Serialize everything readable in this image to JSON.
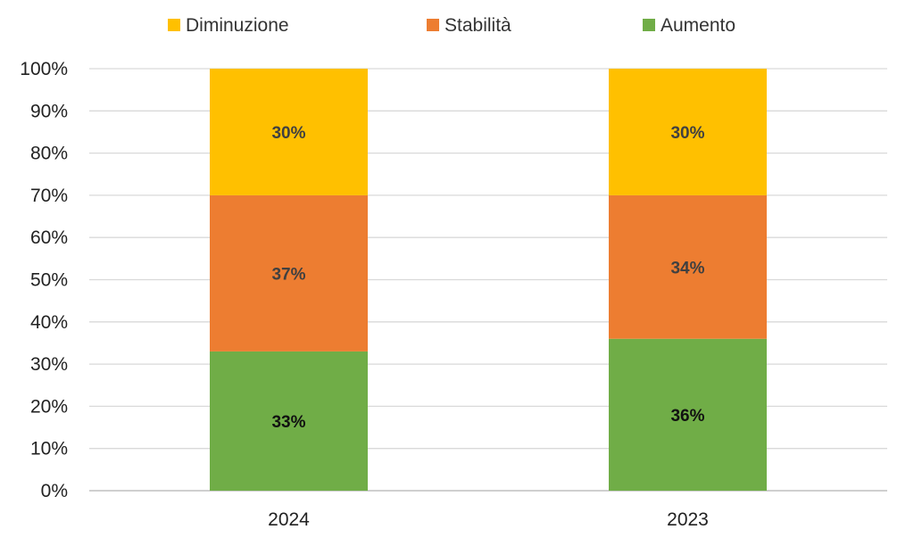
{
  "chart_data": {
    "type": "bar",
    "stacked": true,
    "categories": [
      "2024",
      "2023"
    ],
    "series": [
      {
        "name": "Aumento",
        "values": [
          33,
          36
        ],
        "labels": [
          "33%",
          "36%"
        ],
        "color": "#70ad47",
        "label_color": "#111111"
      },
      {
        "name": "Stabilità",
        "values": [
          37,
          34
        ],
        "labels": [
          "37%",
          "34%"
        ],
        "color": "#ed7d31",
        "label_color": "#404040"
      },
      {
        "name": "Diminuzione",
        "values": [
          30,
          30
        ],
        "labels": [
          "30%",
          "30%"
        ],
        "color": "#ffc000",
        "label_color": "#404040"
      }
    ],
    "legend_order": [
      "Diminuzione",
      "Stabilità",
      "Aumento"
    ],
    "ylim": [
      0,
      100
    ],
    "yticks": [
      0,
      10,
      20,
      30,
      40,
      50,
      60,
      70,
      80,
      90,
      100
    ],
    "ytick_labels": [
      "0%",
      "10%",
      "20%",
      "30%",
      "40%",
      "50%",
      "60%",
      "70%",
      "80%",
      "90%",
      "100%"
    ],
    "grid": true,
    "legend_position": "top"
  }
}
